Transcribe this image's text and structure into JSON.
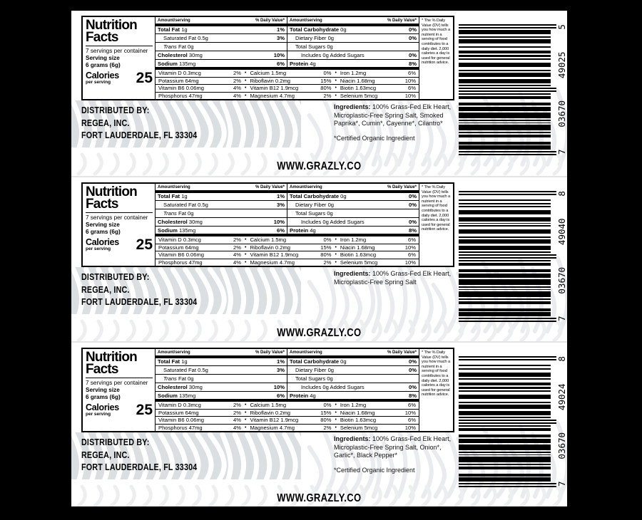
{
  "page": {
    "background": "#000000",
    "label_background": "#ffffff",
    "band_color": "#dcdfe2"
  },
  "website": "WWW.GRAZLY.CO",
  "distributor": {
    "line1": "DISTRIBUTED BY:",
    "line2": "REGEA, INC.",
    "line3": "FORT LAUDERDALE, FL 33304"
  },
  "nutrition": {
    "title_line1": "Nutrition",
    "title_line2": "Facts",
    "servings_per_container": "7 servings per container",
    "serving_size_label": "Serving size",
    "serving_size_value": "6 grams (6g)",
    "calories_label": "Calories",
    "calories_sublabel": "per serving",
    "calories_value": "25",
    "amount_header": "Amount/serving",
    "dv_header": "% Daily Value*",
    "bullet": "•",
    "left_rows": [
      {
        "bold": "Total Fat",
        "text": " 1g",
        "dv": "1%"
      },
      {
        "text": "Saturated Fat 0.5g",
        "dv": "3%"
      },
      {
        "italic": "Trans",
        "text": " Fat 0g",
        "dv": ""
      },
      {
        "bold": "Cholesterol",
        "text": " 30mg",
        "dv": "10%"
      },
      {
        "bold": "Sodium",
        "text": " 135mg",
        "dv": "6%"
      }
    ],
    "right_rows": [
      {
        "bold": "Total Carbohydrate",
        "text": " 0g",
        "dv": "0%"
      },
      {
        "text": "Dietary Fiber 0g",
        "dv": "0%"
      },
      {
        "text": "Total Sugars 0g",
        "dv": ""
      },
      {
        "text": "Includes 0g Added Sugars",
        "dv": "0%"
      },
      {
        "bold": "Protein",
        "text": " 4g",
        "dv": "8%"
      }
    ],
    "micros": [
      [
        {
          "name": "Vitamin D 0.3mcg",
          "dv": "2%"
        },
        {
          "name": "Calcium 1.5mg",
          "dv": "0%"
        },
        {
          "name": "Iron 1.2mg",
          "dv": "6%"
        }
      ],
      [
        {
          "name": "Potassium 64mg",
          "dv": "2%"
        },
        {
          "name": "Riboflavin 0.2mg",
          "dv": "15%"
        },
        {
          "name": "Niacin 1.68mg",
          "dv": "10%"
        }
      ],
      [
        {
          "name": "Vitamin B6 0.06mg",
          "dv": "4%"
        },
        {
          "name": "Vitamin B12 1.9mcg",
          "dv": "80%"
        },
        {
          "name": "Biotin 1.63mcg",
          "dv": "6%"
        }
      ],
      [
        {
          "name": "Phosphorus 47mg",
          "dv": "4%"
        },
        {
          "name": "Magnesium 4.7mg",
          "dv": "2%"
        },
        {
          "name": "Selenium 5mcg",
          "dv": "10%"
        }
      ]
    ],
    "footnote": "* The % Daily Value (DV) tells you how much a nutrient in a serving of food contributes to a daily diet. 2,000 calories a day is used for general nutrition advice."
  },
  "labels": [
    {
      "ingredients_label": "Ingredients:",
      "ingredients": "100% Grass-Fed Elk Heart, Microplastic-Free Spring Salt, Smoked Paprika*, Cumin*, Cayenne*, Cilantro*",
      "organic_note": "*Certified Organic Ingredient",
      "barcode": {
        "groups": [
          "7",
          "03670",
          "49025",
          "5"
        ]
      }
    },
    {
      "ingredients_label": "Ingredients:",
      "ingredients": "100% Grass-Fed Elk Heart, Microplastic-Free Spring Salt",
      "organic_note": "",
      "barcode": {
        "groups": [
          "7",
          "03670",
          "49040",
          "8"
        ]
      }
    },
    {
      "ingredients_label": "Ingredients:",
      "ingredients": "100% Grass-Fed Elk Heart, Microplastic-Free Spring Salt, Onion*, Garlic*, Black Pepper*",
      "organic_note": "*Certified Organic Ingredient",
      "barcode": {
        "groups": [
          "7",
          "03670",
          "49024",
          "8"
        ]
      }
    }
  ]
}
